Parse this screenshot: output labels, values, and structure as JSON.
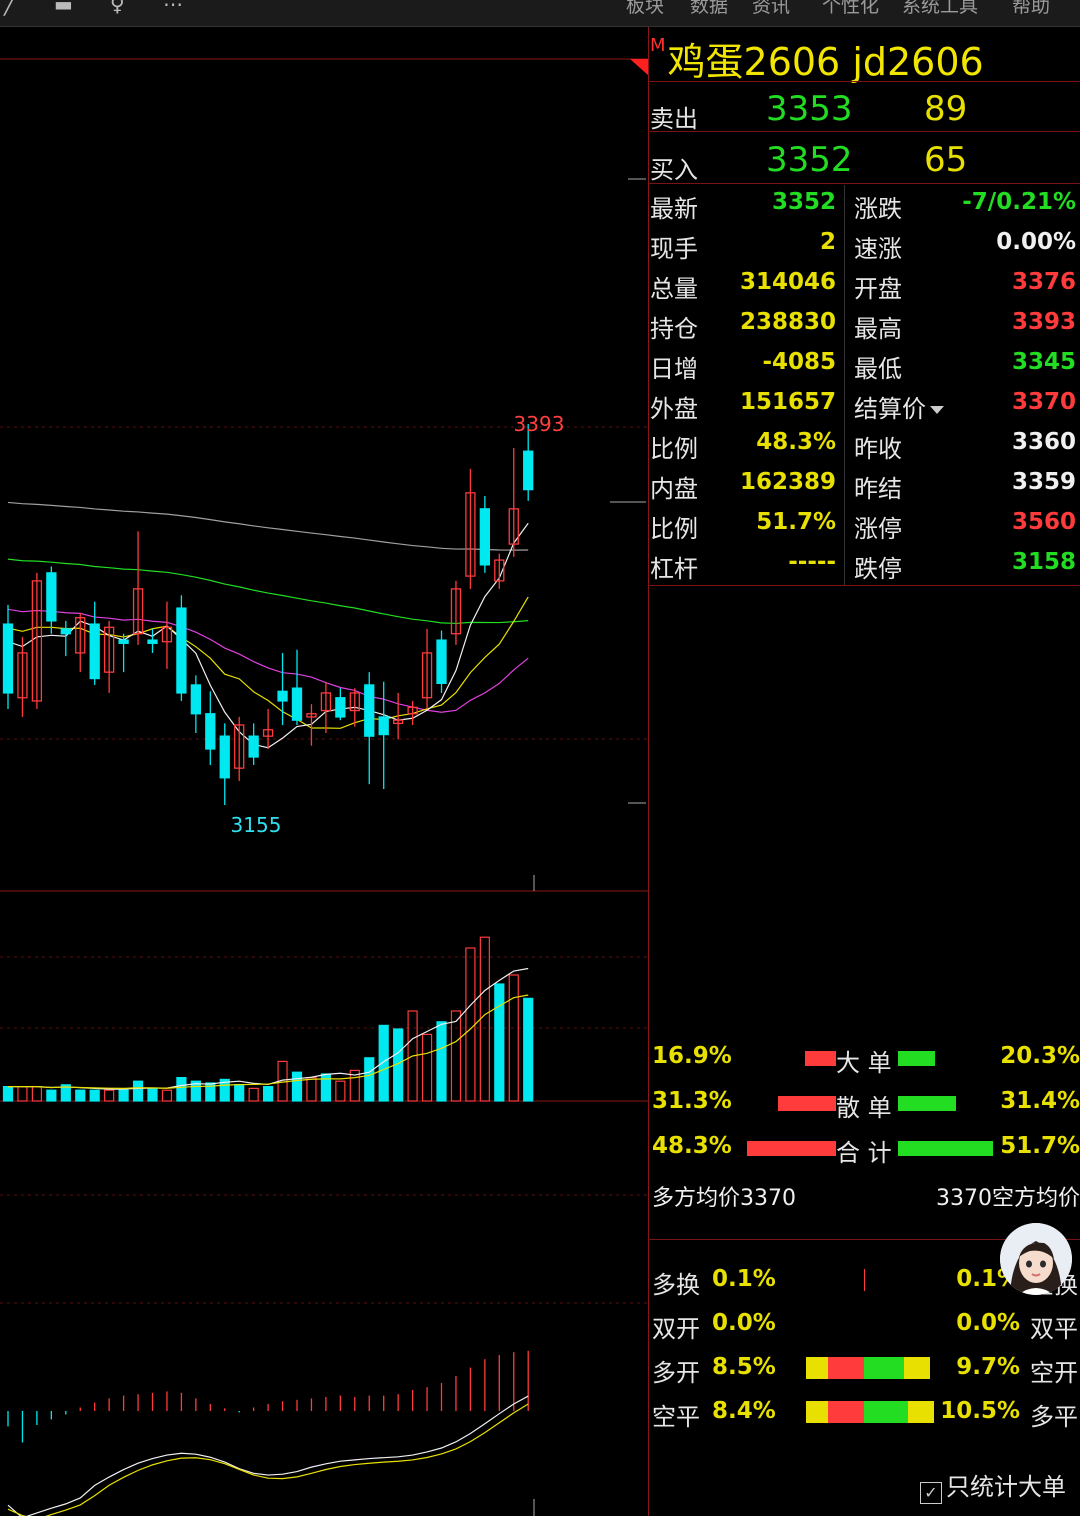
{
  "top_menu": [
    "板块",
    "数据",
    "资讯",
    "个性化",
    "系统工具",
    "帮助"
  ],
  "quote": {
    "badge": "M",
    "title": "鸡蛋2606  jd2606",
    "ask_label": "卖出",
    "ask_price": "3353",
    "ask_vol": "89",
    "bid_label": "买入",
    "bid_price": "3352",
    "bid_vol": "65",
    "rows": [
      {
        "l1": "最新",
        "v1": "3352",
        "c1": "green",
        "l2": "涨跌",
        "v2": "-7/0.21%",
        "c2": "green"
      },
      {
        "l1": "现手",
        "v1": "2",
        "c1": "yellow",
        "l2": "速涨",
        "v2": "0.00%",
        "c2": "white"
      },
      {
        "l1": "总量",
        "v1": "314046",
        "c1": "yellow",
        "l2": "开盘",
        "v2": "3376",
        "c2": "red"
      },
      {
        "l1": "持仓",
        "v1": "238830",
        "c1": "yellow",
        "l2": "最高",
        "v2": "3393",
        "c2": "red"
      },
      {
        "l1": "日增",
        "v1": "-4085",
        "c1": "yellow",
        "l2": "最低",
        "v2": "3345",
        "c2": "green"
      },
      {
        "l1": "外盘",
        "v1": "151657",
        "c1": "yellow",
        "l2": "结算价",
        "v2": "3370",
        "c2": "red"
      },
      {
        "l1": "比例",
        "v1": "48.3%",
        "c1": "yellow",
        "l2": "昨收",
        "v2": "3360",
        "c2": "white"
      },
      {
        "l1": "内盘",
        "v1": "162389",
        "c1": "yellow",
        "l2": "昨结",
        "v2": "3359",
        "c2": "white"
      },
      {
        "l1": "比例",
        "v1": "51.7%",
        "c1": "yellow",
        "l2": "涨停",
        "v2": "3560",
        "c2": "red"
      },
      {
        "l1": "杠杆",
        "v1": "-----",
        "c1": "yellow",
        "l2": "跌停",
        "v2": "3158",
        "c2": "green"
      }
    ]
  },
  "orders": {
    "rows": [
      {
        "left": "16.9%",
        "label": "大 单",
        "right": "20.3%",
        "red_frac": 0.169,
        "green_frac": 0.203
      },
      {
        "left": "31.3%",
        "label": "散 单",
        "right": "31.4%",
        "red_frac": 0.313,
        "green_frac": 0.314
      },
      {
        "left": "48.3%",
        "label": "合 计",
        "right": "51.7%",
        "red_frac": 0.483,
        "green_frac": 0.517
      }
    ],
    "long_avg": "多方均价3370",
    "short_avg": "3370空方均价"
  },
  "position_changes": {
    "rows": [
      {
        "left_label": "多换",
        "left_val": "0.1%",
        "right_val": "0.1%",
        "right_label": "空换"
      },
      {
        "left_label": "双开",
        "left_val": "0.0%",
        "right_val": "0.0%",
        "right_label": "双平"
      },
      {
        "left_label": "多开",
        "left_val": "8.5%",
        "right_val": "9.7%",
        "right_label": "空开"
      },
      {
        "left_label": "空平",
        "left_val": "8.4%",
        "right_val": "10.5%",
        "right_label": "多平"
      }
    ],
    "bar_colors": [
      "#e8e000",
      "#ff3b3b",
      "#22dd22",
      "#e8e000"
    ],
    "checkbox_label": "只统计大单",
    "checkbox_checked": true
  },
  "chart_data": {
    "type": "candlestick",
    "price_axis_labels": {
      "high": "3393",
      "low": "3155"
    },
    "colors": {
      "up": "#ff3b3b",
      "down": "#00e8f0",
      "ma5": "#f0f0f0",
      "ma10": "#e8e000",
      "ma20": "#e040e0",
      "ma60": "#22dd22",
      "ma120": "#a0a0a0"
    },
    "candles": [
      {
        "o": 3268,
        "h": 3280,
        "l": 3215,
        "c": 3225
      },
      {
        "o": 3222,
        "h": 3260,
        "l": 3210,
        "c": 3250
      },
      {
        "o": 3220,
        "h": 3300,
        "l": 3215,
        "c": 3295
      },
      {
        "o": 3300,
        "h": 3304,
        "l": 3262,
        "c": 3270
      },
      {
        "o": 3265,
        "h": 3270,
        "l": 3248,
        "c": 3262
      },
      {
        "o": 3250,
        "h": 3275,
        "l": 3238,
        "c": 3272
      },
      {
        "o": 3268,
        "h": 3282,
        "l": 3230,
        "c": 3234
      },
      {
        "o": 3238,
        "h": 3270,
        "l": 3225,
        "c": 3266
      },
      {
        "o": 3258,
        "h": 3262,
        "l": 3238,
        "c": 3256
      },
      {
        "o": 3262,
        "h": 3326,
        "l": 3255,
        "c": 3290
      },
      {
        "o": 3258,
        "h": 3265,
        "l": 3250,
        "c": 3256
      },
      {
        "o": 3257,
        "h": 3282,
        "l": 3240,
        "c": 3266
      },
      {
        "o": 3278,
        "h": 3286,
        "l": 3220,
        "c": 3225
      },
      {
        "o": 3230,
        "h": 3236,
        "l": 3200,
        "c": 3212
      },
      {
        "o": 3212,
        "h": 3226,
        "l": 3180,
        "c": 3190
      },
      {
        "o": 3198,
        "h": 3206,
        "l": 3155,
        "c": 3172
      },
      {
        "o": 3178,
        "h": 3210,
        "l": 3170,
        "c": 3205
      },
      {
        "o": 3198,
        "h": 3206,
        "l": 3180,
        "c": 3185
      },
      {
        "o": 3198,
        "h": 3215,
        "l": 3190,
        "c": 3202
      },
      {
        "o": 3226,
        "h": 3250,
        "l": 3205,
        "c": 3220
      },
      {
        "o": 3228,
        "h": 3252,
        "l": 3205,
        "c": 3208
      },
      {
        "o": 3210,
        "h": 3218,
        "l": 3192,
        "c": 3212
      },
      {
        "o": 3214,
        "h": 3232,
        "l": 3200,
        "c": 3225
      },
      {
        "o": 3222,
        "h": 3228,
        "l": 3208,
        "c": 3210
      },
      {
        "o": 3214,
        "h": 3228,
        "l": 3204,
        "c": 3225
      },
      {
        "o": 3230,
        "h": 3238,
        "l": 3168,
        "c": 3198
      },
      {
        "o": 3210,
        "h": 3232,
        "l": 3165,
        "c": 3199
      },
      {
        "o": 3206,
        "h": 3225,
        "l": 3196,
        "c": 3208
      },
      {
        "o": 3212,
        "h": 3220,
        "l": 3205,
        "c": 3216
      },
      {
        "o": 3222,
        "h": 3265,
        "l": 3215,
        "c": 3250
      },
      {
        "o": 3258,
        "h": 3264,
        "l": 3225,
        "c": 3231
      },
      {
        "o": 3262,
        "h": 3295,
        "l": 3255,
        "c": 3290
      },
      {
        "o": 3298,
        "h": 3365,
        "l": 3290,
        "c": 3350
      },
      {
        "o": 3340,
        "h": 3348,
        "l": 3300,
        "c": 3305
      },
      {
        "o": 3295,
        "h": 3312,
        "l": 3290,
        "c": 3308
      },
      {
        "o": 3318,
        "h": 3378,
        "l": 3310,
        "c": 3340
      },
      {
        "o": 3376,
        "h": 3393,
        "l": 3345,
        "c": 3352
      }
    ],
    "volume": [
      {
        "v": 0.16,
        "up": false
      },
      {
        "v": 0.16,
        "up": true
      },
      {
        "v": 0.16,
        "up": true
      },
      {
        "v": 0.12,
        "up": false
      },
      {
        "v": 0.18,
        "up": false
      },
      {
        "v": 0.12,
        "up": false
      },
      {
        "v": 0.12,
        "up": false
      },
      {
        "v": 0.12,
        "up": true
      },
      {
        "v": 0.12,
        "up": false
      },
      {
        "v": 0.22,
        "up": false
      },
      {
        "v": 0.14,
        "up": false
      },
      {
        "v": 0.12,
        "up": true
      },
      {
        "v": 0.26,
        "up": false
      },
      {
        "v": 0.22,
        "up": false
      },
      {
        "v": 0.2,
        "up": false
      },
      {
        "v": 0.24,
        "up": false
      },
      {
        "v": 0.18,
        "up": false
      },
      {
        "v": 0.14,
        "up": true
      },
      {
        "v": 0.16,
        "up": false
      },
      {
        "v": 0.44,
        "up": true
      },
      {
        "v": 0.32,
        "up": false
      },
      {
        "v": 0.26,
        "up": true
      },
      {
        "v": 0.3,
        "up": false
      },
      {
        "v": 0.22,
        "up": true
      },
      {
        "v": 0.34,
        "up": true
      },
      {
        "v": 0.48,
        "up": false
      },
      {
        "v": 0.84,
        "up": false
      },
      {
        "v": 0.8,
        "up": false
      },
      {
        "v": 1.0,
        "up": true
      },
      {
        "v": 0.74,
        "up": true
      },
      {
        "v": 0.88,
        "up": false
      },
      {
        "v": 1.0,
        "up": true
      },
      {
        "v": 1.7,
        "up": true
      },
      {
        "v": 1.82,
        "up": true
      },
      {
        "v": 1.3,
        "up": false
      },
      {
        "v": 1.4,
        "up": true
      },
      {
        "v": 1.14,
        "up": false
      }
    ],
    "macd_hist": [
      -0.22,
      -0.45,
      -0.2,
      -0.12,
      -0.05,
      0.05,
      0.12,
      0.18,
      0.22,
      0.24,
      0.26,
      0.28,
      0.26,
      0.18,
      0.1,
      0.04,
      -0.02,
      0.05,
      0.1,
      0.14,
      0.16,
      0.18,
      0.2,
      0.22,
      0.2,
      0.22,
      0.22,
      0.24,
      0.3,
      0.34,
      0.4,
      0.5,
      0.62,
      0.74,
      0.8,
      0.84,
      0.86
    ]
  }
}
